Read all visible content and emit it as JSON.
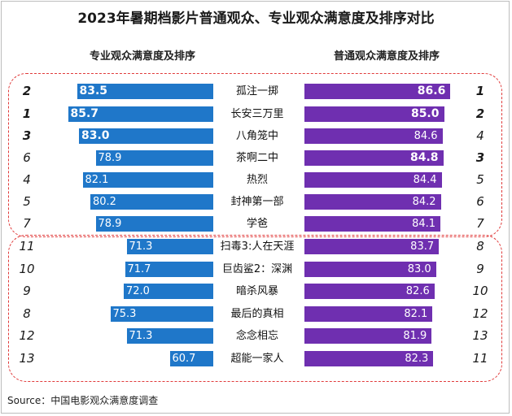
{
  "title": "2023年暑期档影片普通观众、专业观众满意度及排序对比",
  "left_header": "专业观众满意度及排序",
  "right_header": "普通观众满意度及排序",
  "source": "Source：中国电影观众满意度调查",
  "colors": {
    "pro_bar": "#1f77c9",
    "general_bar": "#6f2fb0",
    "group_border": "#e03a3a"
  },
  "chart_data": {
    "type": "bar",
    "title": "2023年暑期档影片普通观众、专业观众满意度及排序对比",
    "categories": [
      "孤注一掷",
      "长安三万里",
      "八角笼中",
      "茶啊二中",
      "热烈",
      "封神第一部",
      "学爸",
      "扫毒3:人在天涯",
      "巨齿鲨2：深渊",
      "暗杀风暴",
      "最后的真相",
      "念念相忘",
      "超能一家人"
    ],
    "series": [
      {
        "name": "专业观众满意度",
        "values": [
          83.5,
          85.7,
          83.0,
          78.9,
          82.1,
          80.2,
          78.9,
          71.3,
          71.7,
          72.0,
          75.3,
          71.3,
          60.7
        ],
        "labels": [
          "83.5",
          "85.7",
          "83.0",
          "78.9",
          "82.1",
          "80.2",
          "78.9",
          "71.3",
          "71.7",
          "72.0",
          "75.3",
          "71.3",
          "60.7"
        ],
        "ranks": [
          "2",
          "1",
          "3",
          "6",
          "4",
          "5",
          "7",
          "11",
          "10",
          "9",
          "8",
          "12",
          "13"
        ]
      },
      {
        "name": "普通观众满意度",
        "values": [
          86.6,
          85.0,
          84.6,
          84.8,
          84.4,
          84.2,
          84.1,
          83.7,
          83.0,
          82.6,
          82.1,
          81.9,
          82.3
        ],
        "labels": [
          "86.6",
          "85.0",
          "84.6",
          "84.8",
          "84.4",
          "84.2",
          "84.1",
          "83.7",
          "83.0",
          "82.6",
          "82.1",
          "81.9",
          "82.3"
        ],
        "ranks": [
          "1",
          "2",
          "4",
          "3",
          "5",
          "6",
          "7",
          "8",
          "9",
          "10",
          "12",
          "13",
          "11"
        ]
      }
    ],
    "bold_ranks": [
      1,
      2,
      3
    ],
    "groups": [
      {
        "rows": [
          0,
          6
        ]
      },
      {
        "rows": [
          7,
          12
        ]
      }
    ],
    "xlim": [
      50,
      90
    ],
    "source": "Source：中国电影观众满意度调查"
  }
}
